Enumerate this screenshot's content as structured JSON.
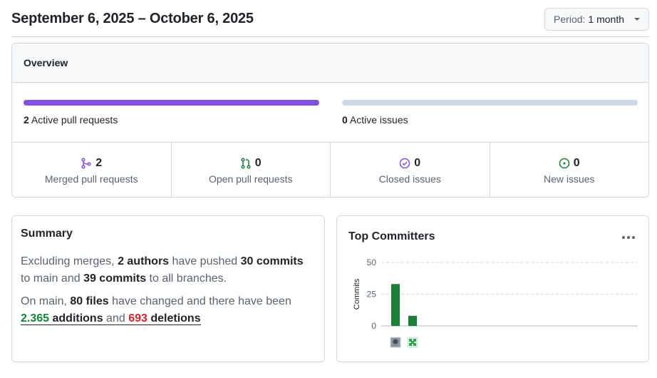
{
  "header": {
    "date_range": "September 6, 2025 – October 6, 2025",
    "period_label": "Period:",
    "period_value": "1 month"
  },
  "overview": {
    "title": "Overview",
    "active_prs": {
      "count": "2",
      "label": "Active pull requests",
      "fraction": 1.0,
      "color": "#8250df"
    },
    "active_issues": {
      "count": "0",
      "label": "Active issues",
      "fraction": 0.0
    },
    "stats": [
      {
        "icon": "merged-icon",
        "value": "2",
        "label": "Merged pull requests",
        "color": "#8250df"
      },
      {
        "icon": "pull-request-icon",
        "value": "0",
        "label": "Open pull requests",
        "color": "#1a7f37"
      },
      {
        "icon": "issue-closed-icon",
        "value": "0",
        "label": "Closed issues",
        "color": "#8250df"
      },
      {
        "icon": "issue-opened-icon",
        "value": "0",
        "label": "New issues",
        "color": "#1a7f37"
      }
    ]
  },
  "summary": {
    "title": "Summary",
    "p1_a": "Excluding merges, ",
    "authors": "2 authors",
    "p1_b": " have pushed ",
    "commits_main": "30 commits",
    "p1_c": " to main and ",
    "commits_all": "39 commits",
    "p1_d": " to all branches.",
    "p2_a": "On main, ",
    "files": "80 files",
    "p2_b": " have changed and there have been",
    "additions_num": "2.365",
    "additions_word": " additions",
    "and_word": " and ",
    "deletions_num": "693",
    "deletions_word": " deletions"
  },
  "committers": {
    "title": "Top Committers"
  },
  "chart_data": {
    "type": "bar",
    "categories": [
      "committer-1",
      "committer-2"
    ],
    "values": [
      33,
      8
    ],
    "ylabel": "Commits",
    "ylim": [
      0,
      50
    ],
    "yticks": [
      "0",
      "25",
      "50"
    ],
    "bar_color": "#1a7f37",
    "grid": "dashed"
  }
}
